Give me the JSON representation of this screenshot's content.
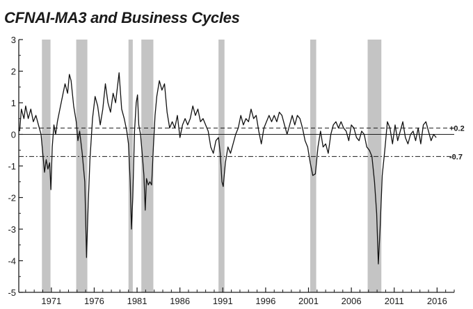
{
  "title": "CFNAI-MA3 and Business Cycles",
  "chart_data": {
    "type": "line",
    "title": "CFNAI-MA3 and Business Cycles",
    "xlabel": "",
    "ylabel": "",
    "xlim": [
      1967.2,
      2018.0
    ],
    "ylim": [
      -5,
      3
    ],
    "y_ticks": [
      3,
      2,
      1,
      0,
      -1,
      -2,
      -3,
      -4,
      -5
    ],
    "x_ticks": [
      1971,
      1976,
      1981,
      1986,
      1991,
      1996,
      2001,
      2006,
      2011,
      2016
    ],
    "reference_lines": [
      {
        "value": 0.2,
        "label": "+0.2",
        "style": "dashed"
      },
      {
        "value": -0.7,
        "label": "-0.7",
        "style": "dash-dot"
      },
      {
        "value": 0,
        "label": "",
        "style": "solid"
      }
    ],
    "recessions": [
      {
        "start": 1969.9,
        "end": 1970.9
      },
      {
        "start": 1973.9,
        "end": 1975.2
      },
      {
        "start": 1980.0,
        "end": 1980.5
      },
      {
        "start": 1981.5,
        "end": 1982.9
      },
      {
        "start": 1990.5,
        "end": 1991.2
      },
      {
        "start": 2001.2,
        "end": 2001.9
      },
      {
        "start": 2007.9,
        "end": 2009.5
      }
    ],
    "series": [
      {
        "values": [
          [
            1967.3,
            0.1
          ],
          [
            1967.5,
            0.8
          ],
          [
            1967.8,
            0.5
          ],
          [
            1968.0,
            0.9
          ],
          [
            1968.3,
            0.5
          ],
          [
            1968.6,
            0.8
          ],
          [
            1968.9,
            0.4
          ],
          [
            1969.2,
            0.6
          ],
          [
            1969.5,
            0.3
          ],
          [
            1969.8,
            0.0
          ],
          [
            1970.0,
            -0.6
          ],
          [
            1970.2,
            -1.2
          ],
          [
            1970.4,
            -0.8
          ],
          [
            1970.6,
            -1.1
          ],
          [
            1970.8,
            -0.9
          ],
          [
            1970.95,
            -1.75
          ],
          [
            1971.1,
            -0.4
          ],
          [
            1971.3,
            0.3
          ],
          [
            1971.5,
            0.0
          ],
          [
            1971.7,
            0.4
          ],
          [
            1972.0,
            0.8
          ],
          [
            1972.3,
            1.2
          ],
          [
            1972.6,
            1.6
          ],
          [
            1972.9,
            1.3
          ],
          [
            1973.1,
            1.9
          ],
          [
            1973.3,
            1.7
          ],
          [
            1973.6,
            0.9
          ],
          [
            1973.9,
            0.4
          ],
          [
            1974.1,
            -0.2
          ],
          [
            1974.3,
            0.1
          ],
          [
            1974.6,
            -0.6
          ],
          [
            1974.9,
            -1.5
          ],
          [
            1975.1,
            -3.9
          ],
          [
            1975.3,
            -2.2
          ],
          [
            1975.5,
            -0.8
          ],
          [
            1975.8,
            0.5
          ],
          [
            1976.1,
            1.2
          ],
          [
            1976.4,
            0.9
          ],
          [
            1976.7,
            0.3
          ],
          [
            1977.0,
            0.8
          ],
          [
            1977.3,
            1.6
          ],
          [
            1977.6,
            1.0
          ],
          [
            1977.9,
            0.7
          ],
          [
            1978.2,
            1.3
          ],
          [
            1978.5,
            1.0
          ],
          [
            1978.9,
            1.95
          ],
          [
            1979.2,
            0.8
          ],
          [
            1979.5,
            0.5
          ],
          [
            1979.8,
            0.1
          ],
          [
            1980.0,
            -0.3
          ],
          [
            1980.2,
            -1.5
          ],
          [
            1980.35,
            -3.0
          ],
          [
            1980.5,
            -2.0
          ],
          [
            1980.7,
            0.1
          ],
          [
            1980.9,
            1.0
          ],
          [
            1981.05,
            1.25
          ],
          [
            1981.2,
            0.3
          ],
          [
            1981.4,
            0.0
          ],
          [
            1981.6,
            -0.6
          ],
          [
            1981.8,
            -1.3
          ],
          [
            1981.95,
            -2.4
          ],
          [
            1982.1,
            -1.4
          ],
          [
            1982.3,
            -1.6
          ],
          [
            1982.5,
            -1.5
          ],
          [
            1982.7,
            -1.6
          ],
          [
            1982.9,
            -0.4
          ],
          [
            1983.1,
            0.6
          ],
          [
            1983.3,
            1.2
          ],
          [
            1983.6,
            1.7
          ],
          [
            1983.9,
            1.4
          ],
          [
            1984.2,
            1.6
          ],
          [
            1984.5,
            0.7
          ],
          [
            1984.8,
            0.2
          ],
          [
            1985.1,
            0.4
          ],
          [
            1985.4,
            0.2
          ],
          [
            1985.7,
            0.6
          ],
          [
            1986.0,
            -0.1
          ],
          [
            1986.3,
            0.3
          ],
          [
            1986.6,
            0.5
          ],
          [
            1986.9,
            0.3
          ],
          [
            1987.2,
            0.5
          ],
          [
            1987.5,
            0.9
          ],
          [
            1987.8,
            0.6
          ],
          [
            1988.1,
            0.8
          ],
          [
            1988.4,
            0.4
          ],
          [
            1988.7,
            0.5
          ],
          [
            1989.0,
            0.3
          ],
          [
            1989.3,
            0.1
          ],
          [
            1989.6,
            -0.4
          ],
          [
            1989.9,
            -0.6
          ],
          [
            1990.2,
            -0.2
          ],
          [
            1990.5,
            -0.1
          ],
          [
            1990.7,
            -0.6
          ],
          [
            1990.9,
            -1.5
          ],
          [
            1991.05,
            -1.65
          ],
          [
            1991.3,
            -0.9
          ],
          [
            1991.6,
            -0.4
          ],
          [
            1991.9,
            -0.6
          ],
          [
            1992.2,
            -0.3
          ],
          [
            1992.5,
            0.0
          ],
          [
            1992.8,
            0.2
          ],
          [
            1993.1,
            0.6
          ],
          [
            1993.4,
            0.3
          ],
          [
            1993.7,
            0.5
          ],
          [
            1994.0,
            0.4
          ],
          [
            1994.3,
            0.8
          ],
          [
            1994.6,
            0.5
          ],
          [
            1994.9,
            0.6
          ],
          [
            1995.2,
            0.1
          ],
          [
            1995.5,
            -0.3
          ],
          [
            1995.8,
            0.2
          ],
          [
            1996.1,
            0.4
          ],
          [
            1996.4,
            0.6
          ],
          [
            1996.7,
            0.4
          ],
          [
            1997.0,
            0.6
          ],
          [
            1997.3,
            0.4
          ],
          [
            1997.6,
            0.7
          ],
          [
            1997.9,
            0.6
          ],
          [
            1998.2,
            0.3
          ],
          [
            1998.5,
            0.0
          ],
          [
            1998.8,
            0.3
          ],
          [
            1999.1,
            0.6
          ],
          [
            1999.4,
            0.3
          ],
          [
            1999.7,
            0.6
          ],
          [
            2000.0,
            0.5
          ],
          [
            2000.3,
            0.2
          ],
          [
            2000.6,
            -0.2
          ],
          [
            2000.9,
            -0.4
          ],
          [
            2001.2,
            -0.9
          ],
          [
            2001.5,
            -1.3
          ],
          [
            2001.8,
            -1.25
          ],
          [
            2002.1,
            -0.4
          ],
          [
            2002.4,
            0.1
          ],
          [
            2002.7,
            -0.4
          ],
          [
            2003.0,
            -0.3
          ],
          [
            2003.3,
            -0.6
          ],
          [
            2003.6,
            0.0
          ],
          [
            2003.9,
            0.3
          ],
          [
            2004.2,
            0.4
          ],
          [
            2004.5,
            0.2
          ],
          [
            2004.8,
            0.4
          ],
          [
            2005.1,
            0.2
          ],
          [
            2005.4,
            0.1
          ],
          [
            2005.7,
            -0.2
          ],
          [
            2006.0,
            0.3
          ],
          [
            2006.3,
            0.2
          ],
          [
            2006.6,
            -0.1
          ],
          [
            2006.9,
            -0.2
          ],
          [
            2007.2,
            0.1
          ],
          [
            2007.5,
            0.0
          ],
          [
            2007.8,
            -0.4
          ],
          [
            2008.1,
            -0.5
          ],
          [
            2008.4,
            -0.7
          ],
          [
            2008.7,
            -1.5
          ],
          [
            2008.95,
            -2.5
          ],
          [
            2009.15,
            -4.1
          ],
          [
            2009.35,
            -3.0
          ],
          [
            2009.6,
            -1.3
          ],
          [
            2009.9,
            -0.5
          ],
          [
            2010.2,
            0.4
          ],
          [
            2010.5,
            0.2
          ],
          [
            2010.8,
            -0.3
          ],
          [
            2011.1,
            0.3
          ],
          [
            2011.4,
            -0.2
          ],
          [
            2011.7,
            0.1
          ],
          [
            2012.0,
            0.4
          ],
          [
            2012.3,
            -0.1
          ],
          [
            2012.6,
            -0.3
          ],
          [
            2012.9,
            0.0
          ],
          [
            2013.2,
            0.1
          ],
          [
            2013.5,
            -0.2
          ],
          [
            2013.8,
            0.2
          ],
          [
            2014.1,
            -0.3
          ],
          [
            2014.4,
            0.3
          ],
          [
            2014.7,
            0.4
          ],
          [
            2015.0,
            0.1
          ],
          [
            2015.3,
            -0.2
          ],
          [
            2015.6,
            0.0
          ],
          [
            2015.9,
            -0.1
          ]
        ]
      }
    ]
  }
}
